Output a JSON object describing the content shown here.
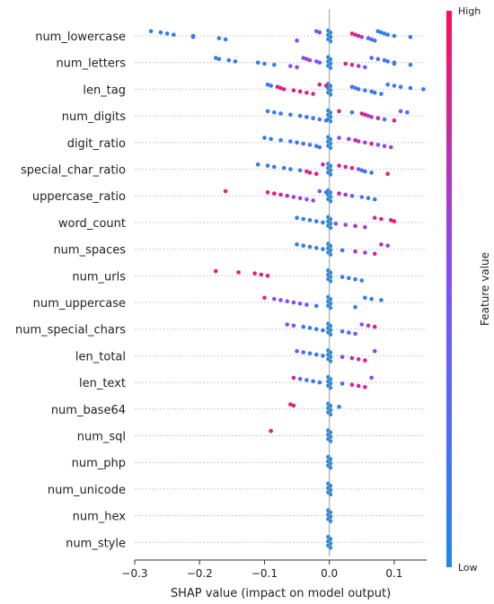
{
  "chart_data": {
    "type": "scatter",
    "subtype": "shap_beeswarm",
    "title": "",
    "xlabel": "SHAP value (impact on model output)",
    "ylabel": "",
    "xlim": [
      -0.3,
      0.15
    ],
    "xticks": [
      -0.3,
      -0.2,
      -0.1,
      0.0,
      0.1
    ],
    "xtick_labels": [
      "−0.3",
      "−0.2",
      "−0.1",
      "0.0",
      "0.1"
    ],
    "features": [
      "num_lowercase",
      "num_letters",
      "len_tag",
      "num_digits",
      "digit_ratio",
      "special_char_ratio",
      "uppercase_ratio",
      "word_count",
      "num_spaces",
      "num_urls",
      "num_uppercase",
      "num_special_chars",
      "len_total",
      "len_text",
      "num_base64",
      "num_sql",
      "num_php",
      "num_unicode",
      "num_hex",
      "num_style"
    ],
    "colorbar": {
      "label": "Feature value",
      "high_label": "High",
      "low_label": "Low",
      "low_color": "#1E88E5",
      "high_color": "#FF0D57"
    },
    "grid": "horizontal dotted per feature",
    "points": [
      {
        "feature": "num_lowercase",
        "values": [
          [
            -0.275,
            0.1
          ],
          [
            -0.26,
            0.15
          ],
          [
            -0.25,
            0.1
          ],
          [
            -0.24,
            0.1
          ],
          [
            -0.21,
            0.1
          ],
          [
            -0.21,
            0.15
          ],
          [
            -0.17,
            0.1
          ],
          [
            -0.16,
            0.1
          ],
          [
            -0.05,
            0.55
          ],
          [
            -0.02,
            0.5
          ],
          [
            -0.015,
            0.6
          ],
          [
            0.035,
            0.85
          ],
          [
            0.04,
            0.9
          ],
          [
            0.045,
            0.8
          ],
          [
            0.05,
            0.6
          ],
          [
            0.06,
            0.4
          ],
          [
            0.065,
            0.3
          ],
          [
            0.07,
            0.2
          ],
          [
            0.075,
            0.15
          ],
          [
            0.08,
            0.1
          ],
          [
            0.085,
            0.1
          ],
          [
            0.09,
            0.2
          ],
          [
            0.1,
            0.1
          ],
          [
            0.125,
            0.1
          ]
        ]
      },
      {
        "feature": "num_letters",
        "values": [
          [
            -0.175,
            0.1
          ],
          [
            -0.17,
            0.1
          ],
          [
            -0.155,
            0.1
          ],
          [
            -0.145,
            0.1
          ],
          [
            -0.11,
            0.1
          ],
          [
            -0.1,
            0.1
          ],
          [
            -0.085,
            0.15
          ],
          [
            -0.06,
            0.5
          ],
          [
            -0.05,
            0.6
          ],
          [
            -0.04,
            0.55
          ],
          [
            -0.035,
            0.7
          ],
          [
            -0.03,
            0.6
          ],
          [
            -0.02,
            0.5
          ],
          [
            -0.015,
            0.45
          ],
          [
            0.025,
            0.85
          ],
          [
            0.035,
            0.8
          ],
          [
            0.045,
            0.7
          ],
          [
            0.055,
            0.4
          ],
          [
            0.065,
            0.3
          ],
          [
            0.075,
            0.2
          ],
          [
            0.085,
            0.15
          ],
          [
            0.09,
            0.1
          ],
          [
            0.1,
            0.1
          ],
          [
            0.1,
            0.2
          ],
          [
            0.125,
            0.1
          ]
        ]
      },
      {
        "feature": "len_tag",
        "values": [
          [
            -0.095,
            0.15
          ],
          [
            -0.09,
            0.2
          ],
          [
            -0.08,
            0.85
          ],
          [
            -0.075,
            0.9
          ],
          [
            -0.07,
            0.85
          ],
          [
            -0.055,
            0.9
          ],
          [
            -0.045,
            0.9
          ],
          [
            -0.035,
            0.85
          ],
          [
            -0.025,
            0.8
          ],
          [
            -0.015,
            0.85
          ],
          [
            -0.005,
            0.8
          ],
          [
            0.035,
            0.2
          ],
          [
            0.04,
            0.15
          ],
          [
            0.045,
            0.2
          ],
          [
            0.055,
            0.15
          ],
          [
            0.065,
            0.1
          ],
          [
            0.07,
            0.15
          ],
          [
            0.08,
            0.15
          ],
          [
            0.09,
            0.2
          ],
          [
            0.1,
            0.1
          ],
          [
            0.11,
            0.1
          ],
          [
            0.125,
            0.1
          ],
          [
            0.145,
            0.1
          ]
        ]
      },
      {
        "feature": "num_digits",
        "values": [
          [
            -0.095,
            0.1
          ],
          [
            -0.085,
            0.1
          ],
          [
            -0.075,
            0.15
          ],
          [
            -0.06,
            0.15
          ],
          [
            -0.045,
            0.1
          ],
          [
            -0.035,
            0.15
          ],
          [
            -0.025,
            0.1
          ],
          [
            -0.015,
            0.15
          ],
          [
            -0.005,
            0.1
          ],
          [
            0.015,
            0.85
          ],
          [
            0.035,
            0.2
          ],
          [
            0.05,
            0.85
          ],
          [
            0.055,
            0.9
          ],
          [
            0.06,
            0.6
          ],
          [
            0.065,
            0.7
          ],
          [
            0.075,
            0.85
          ],
          [
            0.085,
            0.2
          ],
          [
            0.1,
            0.85
          ],
          [
            0.11,
            0.5
          ],
          [
            0.12,
            0.2
          ]
        ]
      },
      {
        "feature": "digit_ratio",
        "values": [
          [
            -0.1,
            0.1
          ],
          [
            -0.09,
            0.15
          ],
          [
            -0.075,
            0.1
          ],
          [
            -0.06,
            0.15
          ],
          [
            -0.05,
            0.2
          ],
          [
            -0.04,
            0.2
          ],
          [
            -0.03,
            0.2
          ],
          [
            -0.02,
            0.15
          ],
          [
            -0.015,
            0.1
          ],
          [
            0.015,
            0.5
          ],
          [
            0.03,
            0.6
          ],
          [
            0.04,
            0.8
          ],
          [
            0.045,
            0.7
          ],
          [
            0.055,
            0.6
          ],
          [
            0.065,
            0.85
          ],
          [
            0.075,
            0.5
          ],
          [
            0.085,
            0.6
          ],
          [
            0.095,
            0.6
          ]
        ]
      },
      {
        "feature": "special_char_ratio",
        "values": [
          [
            -0.11,
            0.1
          ],
          [
            -0.095,
            0.15
          ],
          [
            -0.085,
            0.1
          ],
          [
            -0.07,
            0.15
          ],
          [
            -0.06,
            0.1
          ],
          [
            -0.045,
            0.2
          ],
          [
            -0.035,
            0.8
          ],
          [
            -0.03,
            0.85
          ],
          [
            -0.02,
            0.9
          ],
          [
            -0.01,
            0.8
          ],
          [
            0.015,
            0.85
          ],
          [
            0.025,
            0.8
          ],
          [
            0.035,
            0.9
          ],
          [
            0.045,
            0.4
          ],
          [
            0.05,
            0.3
          ],
          [
            0.055,
            0.2
          ],
          [
            0.065,
            0.2
          ],
          [
            0.09,
            0.85
          ]
        ]
      },
      {
        "feature": "uppercase_ratio",
        "values": [
          [
            -0.16,
            0.85
          ],
          [
            -0.095,
            0.85
          ],
          [
            -0.085,
            0.9
          ],
          [
            -0.075,
            0.85
          ],
          [
            -0.065,
            0.7
          ],
          [
            -0.055,
            0.6
          ],
          [
            -0.045,
            0.6
          ],
          [
            -0.035,
            0.5
          ],
          [
            -0.025,
            0.6
          ],
          [
            -0.015,
            0.5
          ],
          [
            -0.005,
            0.1
          ],
          [
            0.015,
            0.8
          ],
          [
            0.025,
            0.6
          ],
          [
            0.035,
            0.4
          ],
          [
            0.05,
            0.2
          ],
          [
            0.06,
            0.15
          ],
          [
            0.07,
            0.1
          ]
        ]
      },
      {
        "feature": "word_count",
        "values": [
          [
            -0.05,
            0.1
          ],
          [
            -0.04,
            0.15
          ],
          [
            -0.03,
            0.1
          ],
          [
            -0.02,
            0.15
          ],
          [
            -0.01,
            0.1
          ],
          [
            0.01,
            0.5
          ],
          [
            0.025,
            0.6
          ],
          [
            0.04,
            0.7
          ],
          [
            0.055,
            0.6
          ],
          [
            0.07,
            0.8
          ],
          [
            0.08,
            0.85
          ],
          [
            0.095,
            0.9
          ],
          [
            0.1,
            0.9
          ]
        ]
      },
      {
        "feature": "num_spaces",
        "values": [
          [
            -0.05,
            0.1
          ],
          [
            -0.04,
            0.15
          ],
          [
            -0.03,
            0.1
          ],
          [
            -0.02,
            0.15
          ],
          [
            -0.01,
            0.1
          ],
          [
            0.02,
            0.2
          ],
          [
            0.04,
            0.7
          ],
          [
            0.055,
            0.6
          ],
          [
            0.07,
            0.8
          ],
          [
            0.08,
            0.75
          ],
          [
            0.09,
            0.6
          ]
        ]
      },
      {
        "feature": "num_urls",
        "values": [
          [
            -0.175,
            0.9
          ],
          [
            -0.14,
            0.85
          ],
          [
            -0.115,
            0.9
          ],
          [
            -0.105,
            0.85
          ],
          [
            -0.095,
            0.85
          ],
          [
            0.02,
            0.15
          ],
          [
            0.03,
            0.1
          ],
          [
            0.04,
            0.15
          ],
          [
            0.05,
            0.1
          ]
        ]
      },
      {
        "feature": "num_uppercase",
        "values": [
          [
            -0.1,
            0.85
          ],
          [
            -0.085,
            0.6
          ],
          [
            -0.075,
            0.5
          ],
          [
            -0.065,
            0.5
          ],
          [
            -0.055,
            0.6
          ],
          [
            -0.045,
            0.5
          ],
          [
            -0.035,
            0.4
          ],
          [
            -0.02,
            0.2
          ],
          [
            0.04,
            0.15
          ],
          [
            0.055,
            0.1
          ],
          [
            0.065,
            0.15
          ],
          [
            0.08,
            0.1
          ]
        ]
      },
      {
        "feature": "num_special_chars",
        "values": [
          [
            -0.065,
            0.6
          ],
          [
            -0.055,
            0.5
          ],
          [
            -0.04,
            0.1
          ],
          [
            -0.03,
            0.15
          ],
          [
            -0.02,
            0.1
          ],
          [
            -0.01,
            0.15
          ],
          [
            0.02,
            0.2
          ],
          [
            0.03,
            0.3
          ],
          [
            0.04,
            0.4
          ],
          [
            0.05,
            0.5
          ],
          [
            0.06,
            0.7
          ],
          [
            0.07,
            0.85
          ]
        ]
      },
      {
        "feature": "len_total",
        "values": [
          [
            -0.05,
            0.3
          ],
          [
            -0.04,
            0.2
          ],
          [
            -0.03,
            0.15
          ],
          [
            -0.02,
            0.1
          ],
          [
            -0.01,
            0.15
          ],
          [
            0.02,
            0.6
          ],
          [
            0.035,
            0.8
          ],
          [
            0.045,
            0.7
          ],
          [
            0.055,
            0.85
          ],
          [
            0.07,
            0.6
          ]
        ]
      },
      {
        "feature": "len_text",
        "values": [
          [
            -0.055,
            0.85
          ],
          [
            -0.045,
            0.3
          ],
          [
            -0.035,
            0.2
          ],
          [
            -0.025,
            0.15
          ],
          [
            -0.015,
            0.1
          ],
          [
            0.02,
            0.2
          ],
          [
            0.035,
            0.85
          ],
          [
            0.045,
            0.8
          ],
          [
            0.055,
            0.85
          ],
          [
            0.065,
            0.6
          ]
        ]
      },
      {
        "feature": "num_base64",
        "values": [
          [
            -0.06,
            0.85
          ],
          [
            -0.055,
            0.9
          ],
          [
            0.015,
            0.1
          ]
        ]
      },
      {
        "feature": "num_sql",
        "values": [
          [
            -0.09,
            0.9
          ]
        ]
      },
      {
        "feature": "num_php",
        "values": []
      },
      {
        "feature": "num_unicode",
        "values": []
      },
      {
        "feature": "num_hex",
        "values": []
      },
      {
        "feature": "num_style",
        "values": []
      }
    ]
  }
}
